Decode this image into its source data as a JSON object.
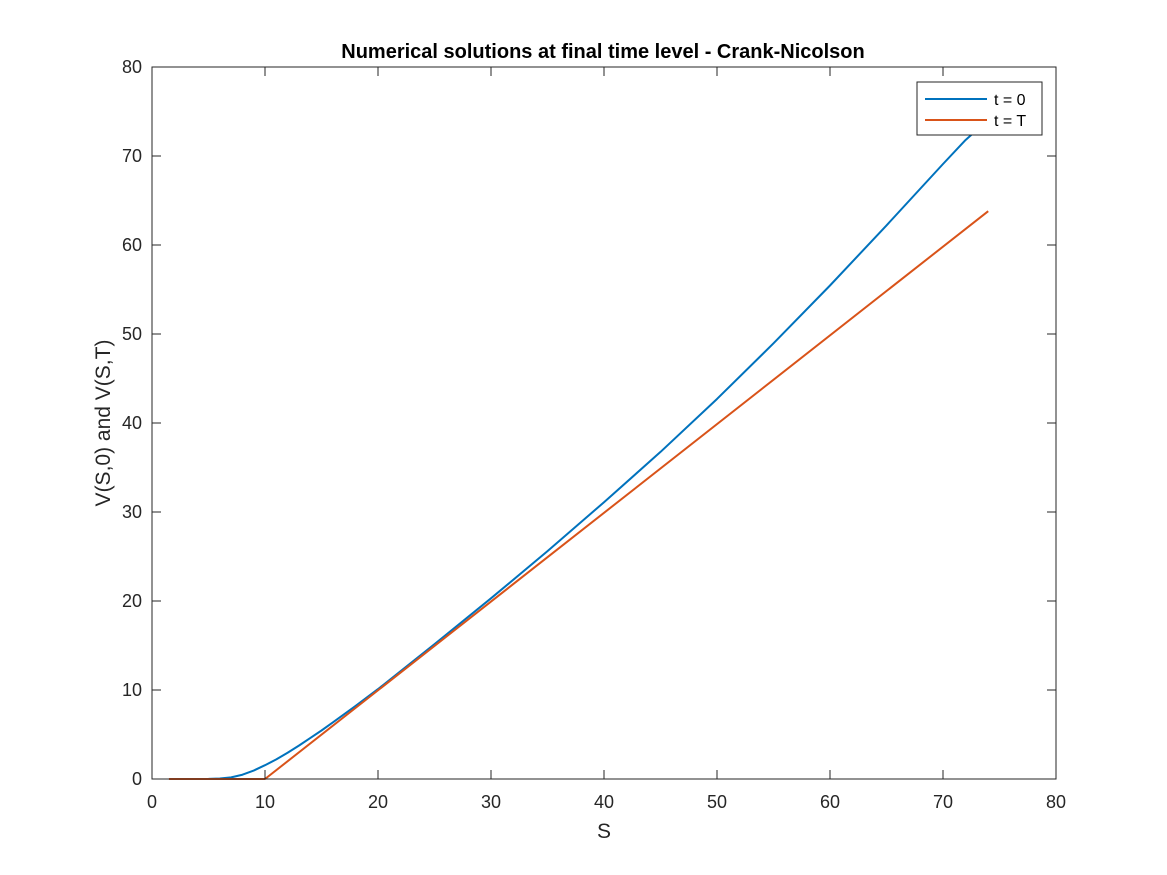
{
  "chart_data": {
    "type": "line",
    "title": "Numerical solutions at final time level - Crank-Nicolson",
    "xlabel": "S",
    "ylabel": "V(S,0) and V(S,T)",
    "xlim": [
      0,
      80
    ],
    "ylim": [
      0,
      80
    ],
    "xticks": [
      0,
      10,
      20,
      30,
      40,
      50,
      60,
      70,
      80
    ],
    "yticks": [
      0,
      10,
      20,
      30,
      40,
      50,
      60,
      70,
      80
    ],
    "grid": false,
    "legend": {
      "position": "top-right",
      "entries": [
        "t = 0",
        "t = T"
      ]
    },
    "series": [
      {
        "name": "t = 0",
        "color": "#0072BD",
        "x": [
          1.5,
          3,
          4,
          5,
          6,
          7,
          8,
          9,
          10,
          11,
          12,
          13,
          14,
          15,
          16,
          18,
          20,
          25,
          30,
          35,
          40,
          45,
          50,
          55,
          60,
          65,
          70,
          72,
          73.5
        ],
        "y": [
          0,
          0,
          0,
          0.01,
          0.05,
          0.18,
          0.48,
          0.95,
          1.55,
          2.2,
          2.95,
          3.75,
          4.6,
          5.45,
          6.35,
          8.2,
          10.1,
          15.15,
          20.3,
          25.6,
          31.1,
          36.75,
          42.7,
          48.95,
          55.45,
          62.2,
          69.1,
          71.8,
          73.5
        ]
      },
      {
        "name": "t = T",
        "color": "#D95319",
        "x": [
          1.5,
          10,
          74
        ],
        "y": [
          0,
          0,
          63.8
        ]
      }
    ]
  }
}
